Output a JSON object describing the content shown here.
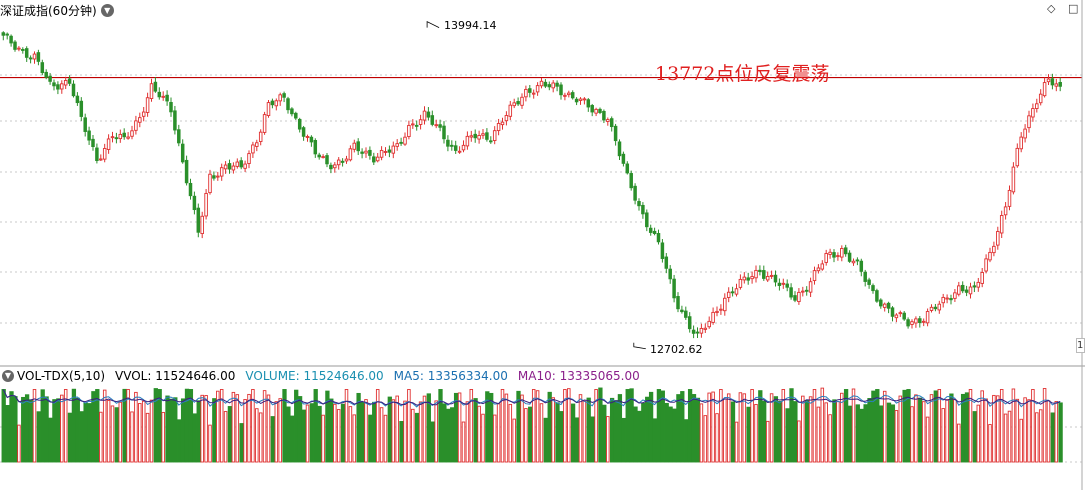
{
  "header": {
    "title": "深证成指(60分钟)",
    "dropdown_icon": "chevron-down-icon",
    "right_icons": [
      "diamond-icon",
      "square-icon"
    ]
  },
  "annotation": {
    "text": "13772点位反复震荡",
    "color": "#e02020"
  },
  "labels": {
    "high": "13994.14",
    "low": "12702.62"
  },
  "volume_header": {
    "indicator": "VOL-TDX(5,10)",
    "vvol": "VVOL: 11524646.00",
    "volume": "VOLUME: 11524646.00",
    "ma5": "MA5: 13356334.00",
    "ma10": "MA10: 13335065.00"
  },
  "edge_tag": "1",
  "colors": {
    "up": "#e03030",
    "down": "#2a8f2a",
    "grid": "#c8c8c8",
    "hline": "#c00000",
    "ma5": "#2a7fbf",
    "ma10": "#3a1f7f",
    "vvol_text": "#000000",
    "volume_text": "#1a8fb0",
    "ma5_text": "#1a6fb0",
    "ma10_text": "#8a1f8a"
  },
  "chart_data": {
    "type": "candlestick",
    "title": "深证成指(60分钟)",
    "high_marker": 13994.14,
    "low_marker": 12702.62,
    "reference_line": 13772,
    "ylim": [
      12650,
      14080
    ],
    "grid": true,
    "close_path": [
      [
        0,
        13930
      ],
      [
        8,
        13850
      ],
      [
        12,
        13740
      ],
      [
        17,
        13760
      ],
      [
        20,
        13600
      ],
      [
        24,
        13450
      ],
      [
        28,
        13540
      ],
      [
        31,
        13520
      ],
      [
        35,
        13620
      ],
      [
        38,
        13730
      ],
      [
        43,
        13650
      ],
      [
        48,
        13300
      ],
      [
        50,
        13150
      ],
      [
        53,
        13380
      ],
      [
        57,
        13420
      ],
      [
        61,
        13410
      ],
      [
        65,
        13530
      ],
      [
        68,
        13660
      ],
      [
        72,
        13690
      ],
      [
        76,
        13580
      ],
      [
        80,
        13470
      ],
      [
        83,
        13430
      ],
      [
        87,
        13440
      ],
      [
        90,
        13490
      ],
      [
        95,
        13460
      ],
      [
        101,
        13490
      ],
      [
        104,
        13580
      ],
      [
        108,
        13620
      ],
      [
        112,
        13560
      ],
      [
        116,
        13480
      ],
      [
        121,
        13540
      ],
      [
        125,
        13540
      ],
      [
        130,
        13640
      ],
      [
        134,
        13720
      ],
      [
        138,
        13740
      ],
      [
        142,
        13730
      ],
      [
        147,
        13690
      ],
      [
        151,
        13640
      ],
      [
        155,
        13620
      ],
      [
        160,
        13370
      ],
      [
        163,
        13260
      ],
      [
        168,
        13110
      ],
      [
        172,
        12900
      ],
      [
        176,
        12790
      ],
      [
        178,
        12740
      ],
      [
        181,
        12800
      ],
      [
        185,
        12900
      ],
      [
        189,
        12950
      ],
      [
        194,
        13010
      ],
      [
        198,
        12960
      ],
      [
        203,
        12900
      ],
      [
        207,
        12960
      ],
      [
        211,
        13060
      ],
      [
        215,
        13090
      ],
      [
        219,
        13020
      ],
      [
        223,
        12920
      ],
      [
        228,
        12830
      ],
      [
        232,
        12800
      ],
      [
        236,
        12820
      ],
      [
        241,
        12880
      ],
      [
        245,
        12940
      ],
      [
        249,
        12920
      ],
      [
        253,
        13080
      ],
      [
        257,
        13260
      ],
      [
        261,
        13540
      ],
      [
        265,
        13690
      ],
      [
        268,
        13760
      ],
      [
        271,
        13720
      ]
    ],
    "volume_pattern": "alternating red/green bars with MA5 and MA10 lines",
    "volume_series": [
      {
        "name": "MA5",
        "value": 13356334.0
      },
      {
        "name": "MA10",
        "value": 13335065.0
      },
      {
        "name": "VOLUME",
        "value": 11524646.0
      }
    ]
  }
}
